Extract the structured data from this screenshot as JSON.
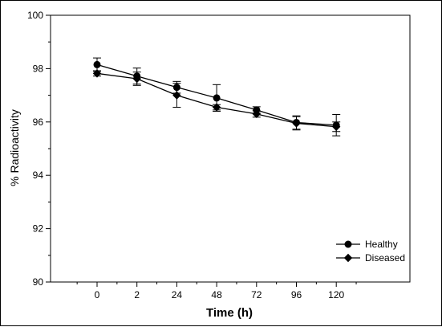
{
  "chart_data": {
    "type": "line",
    "title": "",
    "xlabel": "Time (h)",
    "ylabel": "% Radioactivity",
    "categories": [
      "0",
      "2",
      "24",
      "48",
      "72",
      "96",
      "120"
    ],
    "ylim": [
      90,
      100
    ],
    "yticks": [
      90,
      92,
      94,
      96,
      98,
      100
    ],
    "grid": false,
    "legend_position": "bottom-right",
    "series": [
      {
        "name": "Healthy",
        "marker": "circle",
        "values": [
          98.15,
          97.72,
          97.3,
          96.9,
          96.45,
          95.98,
          95.88
        ],
        "errors": [
          0.25,
          0.3,
          0.22,
          0.5,
          0.12,
          0.25,
          0.4
        ]
      },
      {
        "name": "Diseased",
        "marker": "diamond",
        "values": [
          97.82,
          97.62,
          97.0,
          96.55,
          96.3,
          95.95,
          95.82
        ],
        "errors": [
          0.1,
          0.25,
          0.45,
          0.1,
          0.12,
          0.25,
          0.18
        ]
      }
    ]
  }
}
